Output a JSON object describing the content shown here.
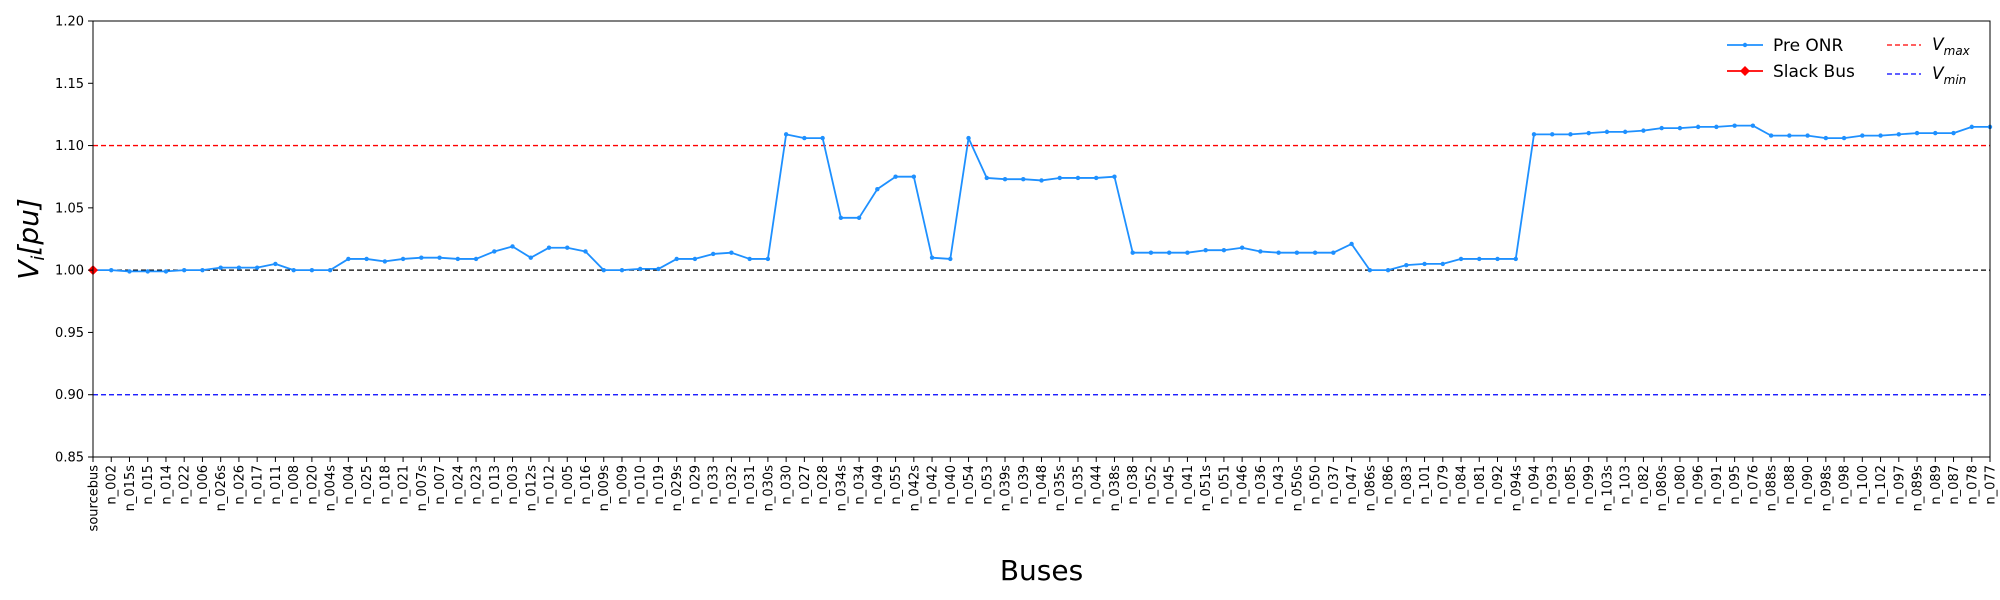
{
  "chart_data": {
    "type": "line",
    "xlabel": "Buses",
    "ylabel": "V_i [pu]",
    "ylabel_main": "V",
    "ylabel_sub": "i",
    "ylabel_unit": "[pu]",
    "ylim": [
      0.85,
      1.2
    ],
    "yticks": [
      "0.85",
      "0.90",
      "0.95",
      "1.00",
      "1.05",
      "1.10",
      "1.15",
      "1.20"
    ],
    "categories": [
      "sourcebus",
      "n_002",
      "n_015s",
      "n_015",
      "n_014",
      "n_022",
      "n_006",
      "n_026s",
      "n_026",
      "n_017",
      "n_011",
      "n_008",
      "n_020",
      "n_004s",
      "n_004",
      "n_025",
      "n_018",
      "n_021",
      "n_007s",
      "n_007",
      "n_024",
      "n_023",
      "n_013",
      "n_003",
      "n_012s",
      "n_012",
      "n_005",
      "n_016",
      "n_009s",
      "n_009",
      "n_010",
      "n_019",
      "n_029s",
      "n_029",
      "n_033",
      "n_032",
      "n_031",
      "n_030s",
      "n_030",
      "n_027",
      "n_028",
      "n_034s",
      "n_034",
      "n_049",
      "n_055",
      "n_042s",
      "n_042",
      "n_040",
      "n_054",
      "n_053",
      "n_039s",
      "n_039",
      "n_048",
      "n_035s",
      "n_035",
      "n_044",
      "n_038s",
      "n_038",
      "n_052",
      "n_045",
      "n_041",
      "n_051s",
      "n_051",
      "n_046",
      "n_036",
      "n_043",
      "n_050s",
      "n_050",
      "n_037",
      "n_047",
      "n_086s",
      "n_086",
      "n_083",
      "n_101",
      "n_079",
      "n_084",
      "n_081",
      "n_092",
      "n_094s",
      "n_094",
      "n_093",
      "n_085",
      "n_099",
      "n_103s",
      "n_103",
      "n_082",
      "n_080s",
      "n_080",
      "n_096",
      "n_091",
      "n_095",
      "n_076",
      "n_088s",
      "n_088",
      "n_090",
      "n_098s",
      "n_098",
      "n_100",
      "n_102",
      "n_097",
      "n_089s",
      "n_089",
      "n_087",
      "n_078",
      "n_077"
    ],
    "highlight_categories": [
      "n_030",
      "n_027",
      "n_028",
      "n_054",
      "n_094",
      "n_093",
      "n_085",
      "n_099",
      "n_103s",
      "n_103",
      "n_082",
      "n_080s",
      "n_080",
      "n_096",
      "n_091",
      "n_095",
      "n_076",
      "n_088s",
      "n_088",
      "n_090",
      "n_098s",
      "n_098",
      "n_100",
      "n_102",
      "n_097",
      "n_089s",
      "n_089",
      "n_087",
      "n_078",
      "n_077"
    ],
    "series": [
      {
        "name": "Pre ONR",
        "color": "#1e90ff",
        "values": [
          1.0,
          1.0,
          0.999,
          0.999,
          0.999,
          1.0,
          1.0,
          1.002,
          1.002,
          1.002,
          1.005,
          1.0,
          1.0,
          1.0,
          1.009,
          1.009,
          1.007,
          1.009,
          1.01,
          1.01,
          1.009,
          1.009,
          1.015,
          1.019,
          1.01,
          1.018,
          1.018,
          1.015,
          1.0,
          1.0,
          1.001,
          1.001,
          1.009,
          1.009,
          1.013,
          1.014,
          1.009,
          1.009,
          1.109,
          1.106,
          1.106,
          1.042,
          1.042,
          1.065,
          1.075,
          1.075,
          1.01,
          1.009,
          1.106,
          1.074,
          1.073,
          1.073,
          1.072,
          1.074,
          1.074,
          1.074,
          1.075,
          1.014,
          1.014,
          1.014,
          1.014,
          1.016,
          1.016,
          1.018,
          1.015,
          1.014,
          1.014,
          1.014,
          1.014,
          1.021,
          1.0,
          1.0,
          1.004,
          1.005,
          1.005,
          1.009,
          1.009,
          1.009,
          1.009,
          1.109,
          1.109,
          1.109,
          1.11,
          1.111,
          1.111,
          1.112,
          1.114,
          1.114,
          1.115,
          1.115,
          1.116,
          1.116,
          1.108,
          1.108,
          1.108,
          1.106,
          1.106,
          1.108,
          1.108,
          1.109,
          1.11,
          1.11,
          1.11,
          1.115,
          1.115
        ]
      }
    ],
    "slack": {
      "name": "Slack Bus",
      "category": "sourcebus",
      "value": 1.0,
      "color": "#ff0000"
    },
    "reference_lines": [
      {
        "name": "V_max",
        "main": "V",
        "sub": "max",
        "value": 1.1,
        "color": "#ff0000"
      },
      {
        "name": "V_min",
        "main": "V",
        "sub": "min",
        "value": 0.9,
        "color": "#0000ff"
      },
      {
        "name": "nominal",
        "value": 1.0,
        "color": "#000000"
      }
    ],
    "legend_position": "top-right",
    "grid": false
  }
}
